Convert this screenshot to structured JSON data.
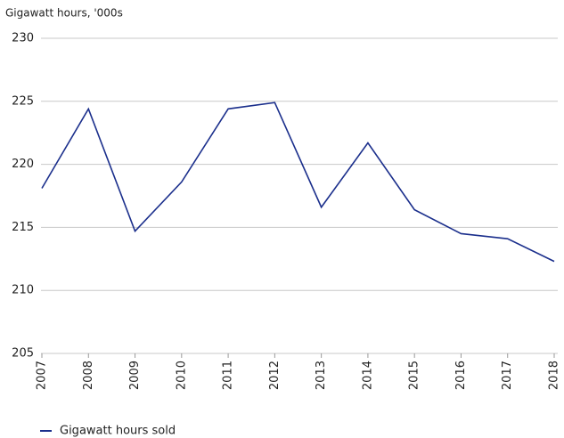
{
  "chart_data": {
    "type": "line",
    "y_axis_label": "Gigawatt hours, '000s",
    "categories": [
      "2007",
      "2008",
      "2009",
      "2010",
      "2011",
      "2012",
      "2013",
      "2014",
      "2015",
      "2016",
      "2017",
      "2018"
    ],
    "series": [
      {
        "name": "Gigawatt hours sold",
        "color": "#1b2f8c",
        "values": [
          218.1,
          224.4,
          214.7,
          218.6,
          224.4,
          224.9,
          216.6,
          221.7,
          216.4,
          214.5,
          214.1,
          212.3
        ]
      }
    ],
    "ylim": [
      205,
      230
    ],
    "yticks": [
      205,
      210,
      215,
      220,
      225,
      230
    ],
    "grid": true,
    "legend": "bottom-left"
  }
}
